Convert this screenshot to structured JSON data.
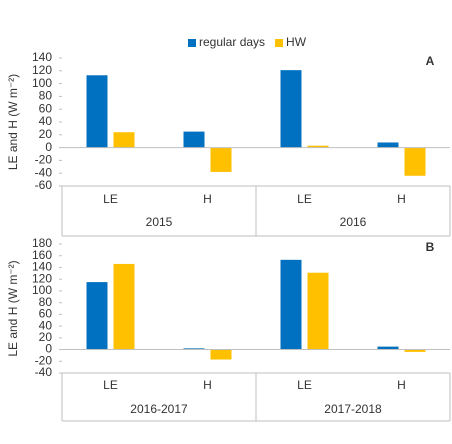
{
  "chart_data": [
    {
      "type": "bar",
      "panel": "A",
      "ylabel": "LE and H (W m⁻²)",
      "legend": true,
      "categories": [
        "LE",
        "H",
        "LE",
        "H"
      ],
      "groups": [
        "2015",
        "2016"
      ],
      "series": [
        {
          "name": "regular days",
          "color": "#0070c0",
          "values": [
            113,
            25,
            121,
            8
          ]
        },
        {
          "name": "HW",
          "color": "#ffc000",
          "values": [
            24,
            -38,
            3,
            -44
          ]
        }
      ],
      "ylim": [
        -60,
        140
      ],
      "yticks": [
        -60,
        -40,
        -20,
        0,
        20,
        40,
        60,
        80,
        100,
        120,
        140
      ]
    },
    {
      "type": "bar",
      "panel": "B",
      "ylabel": "LE and H (W m⁻²)",
      "legend": false,
      "categories": [
        "LE",
        "H",
        "LE",
        "H"
      ],
      "groups": [
        "2016-2017",
        "2017-2018"
      ],
      "series": [
        {
          "name": "regular days",
          "color": "#0070c0",
          "values": [
            115,
            2,
            153,
            5
          ]
        },
        {
          "name": "HW",
          "color": "#ffc000",
          "values": [
            146,
            -17,
            131,
            -4
          ]
        }
      ],
      "ylim": [
        -40,
        180
      ],
      "yticks": [
        -40,
        -20,
        0,
        20,
        40,
        60,
        80,
        100,
        120,
        140,
        160,
        180
      ]
    }
  ]
}
